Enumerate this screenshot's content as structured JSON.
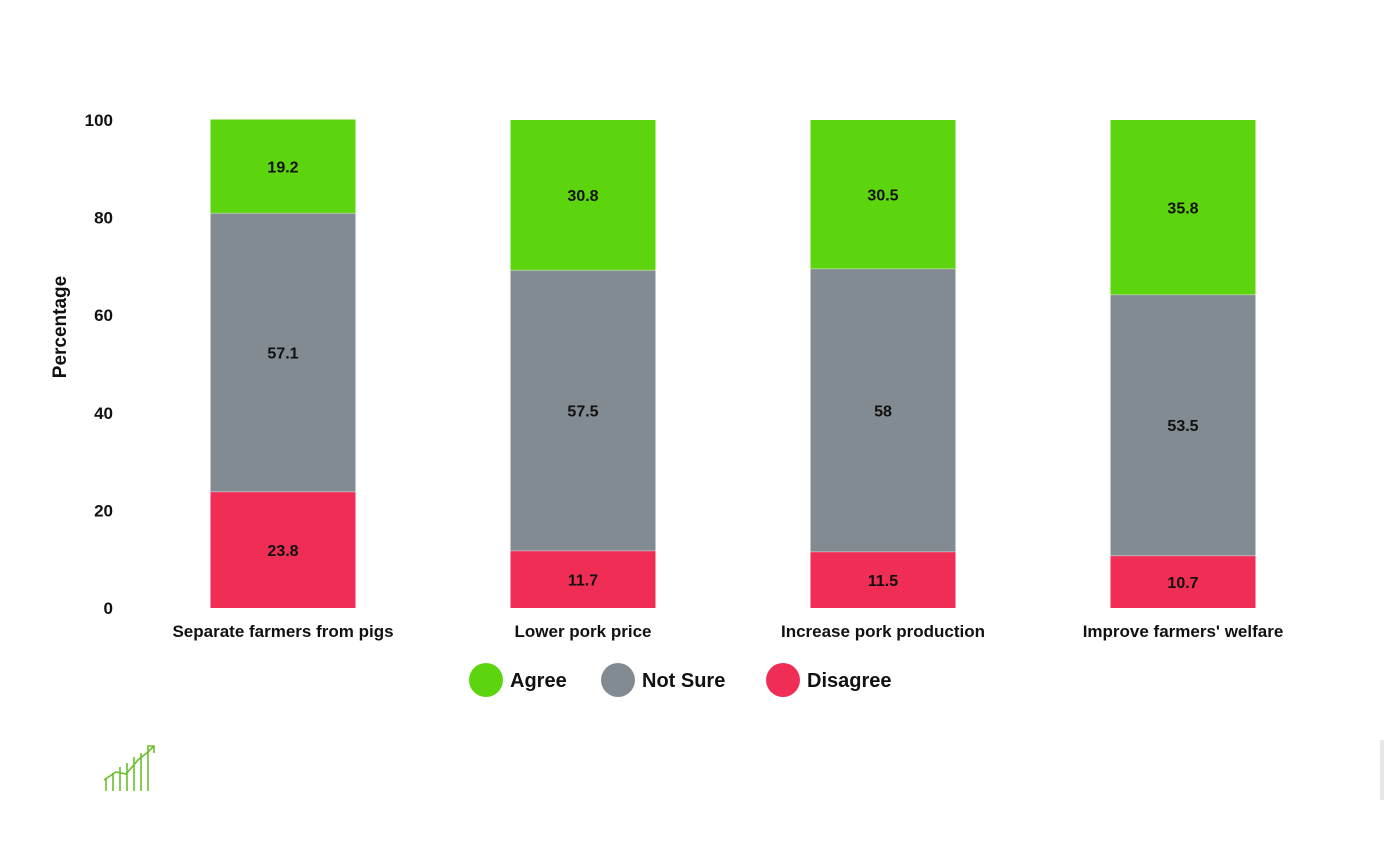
{
  "chart_data": {
    "type": "bar",
    "stacked": true,
    "categories": [
      "Separate farmers from pigs",
      "Lower pork price",
      "Increase pork production",
      "Improve farmers' welfare"
    ],
    "series": [
      {
        "name": "Disagree",
        "color": "#ef2d55",
        "values": [
          23.8,
          11.7,
          11.5,
          10.7
        ]
      },
      {
        "name": "Not Sure",
        "color": "#828b91",
        "values": [
          57.1,
          57.5,
          58,
          53.5
        ]
      },
      {
        "name": "Agree",
        "color": "#5dd50e",
        "values": [
          19.2,
          30.8,
          30.5,
          35.8
        ]
      }
    ],
    "legend_order": [
      "Agree",
      "Not Sure",
      "Disagree"
    ],
    "ylabel": "Percentage",
    "xlabel": "",
    "ylim": [
      0,
      100
    ],
    "yticks": [
      0,
      20,
      40,
      60,
      80,
      100
    ],
    "grid": false,
    "legend_position": "bottom-center"
  },
  "logo": {
    "icon": "growth-chart-icon",
    "color": "#6abf2a"
  }
}
